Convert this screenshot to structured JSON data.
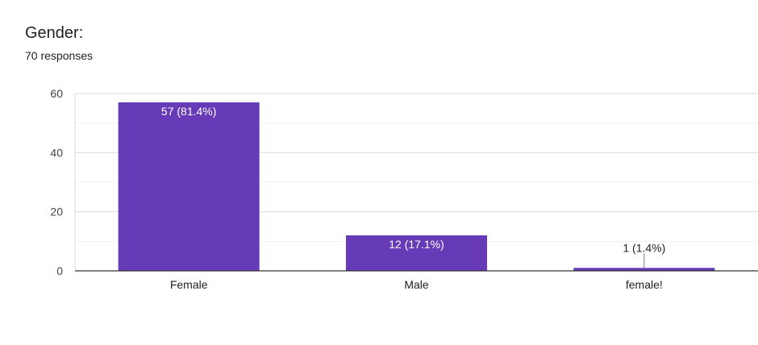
{
  "question": {
    "title": "Gender:",
    "responses_text": "70 responses"
  },
  "chart_data": {
    "type": "bar",
    "categories": [
      "Female",
      "Male",
      "female!"
    ],
    "values": [
      57,
      12,
      1
    ],
    "data_labels": [
      "57 (81.4%)",
      "12 (17.1%)",
      "1 (1.4%)"
    ],
    "ylim": [
      0,
      60
    ],
    "yticks": [
      0,
      20,
      40,
      60
    ],
    "grid": true,
    "bar_color": "#673ab7",
    "xlabel": "",
    "ylabel": ""
  }
}
